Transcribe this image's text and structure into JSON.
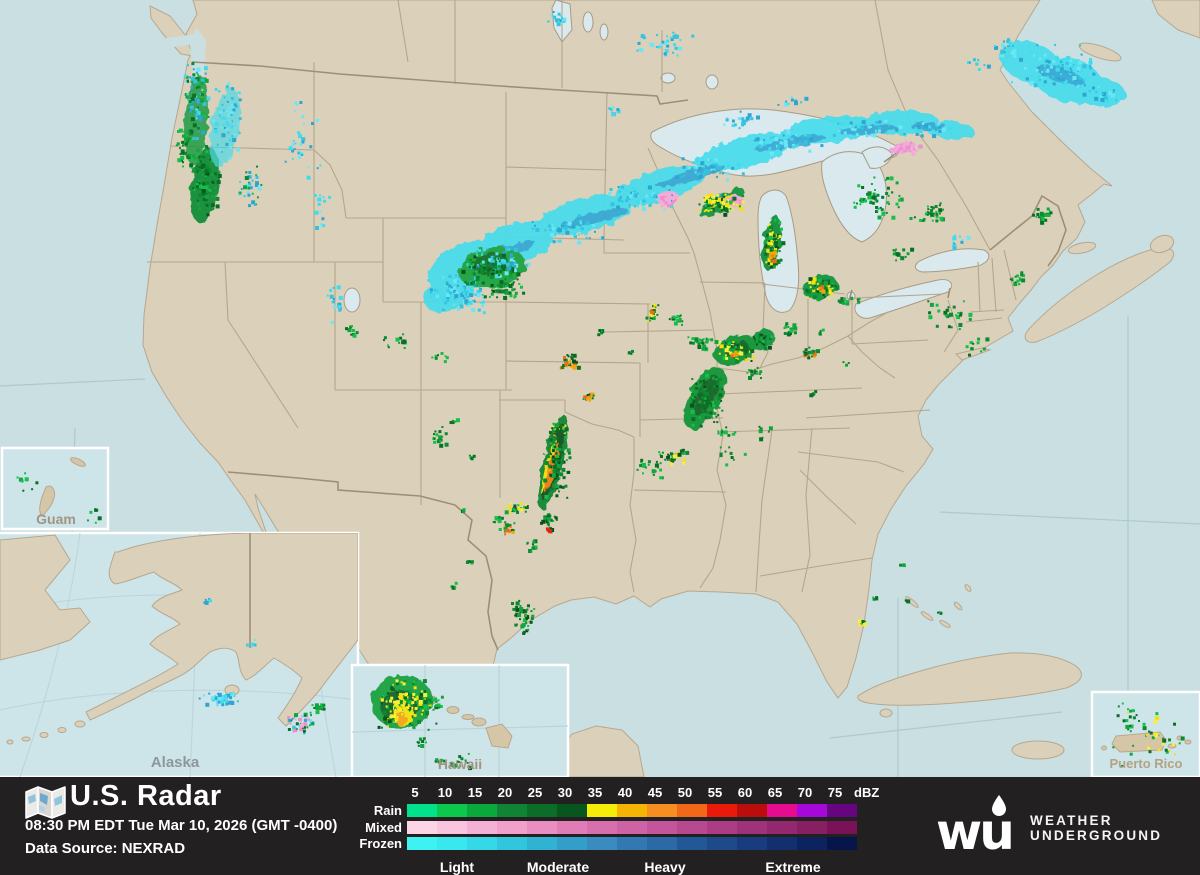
{
  "header": {
    "title": "U.S. Radar",
    "timestamp": "08:30 PM EDT Tue Mar 10, 2026 (GMT -0400)",
    "data_source": "Data Source: NEXRAD"
  },
  "legend": {
    "dbz_values": [
      "5",
      "10",
      "15",
      "20",
      "25",
      "30",
      "35",
      "40",
      "45",
      "50",
      "55",
      "60",
      "65",
      "70",
      "75"
    ],
    "dbz_unit": "dBZ",
    "rows": [
      {
        "label": "Rain",
        "colors": [
          "#00e28b",
          "#0cc84c",
          "#0aa93c",
          "#108434",
          "#0b6d28",
          "#07561d",
          "#f6ec09",
          "#f5b306",
          "#f68e21",
          "#f1681a",
          "#ea1a0b",
          "#ba0d0c",
          "#e60c90",
          "#a708da",
          "#670480"
        ]
      },
      {
        "label": "Mixed",
        "colors": [
          "#fbd5e6",
          "#f9c4de",
          "#f5b1d5",
          "#f0a0cb",
          "#e88ec0",
          "#e07db6",
          "#d76fad",
          "#cd62a4",
          "#c4559b",
          "#b84990",
          "#ac3d85",
          "#a03279",
          "#93286e",
          "#872063",
          "#7a1257"
        ]
      },
      {
        "label": "Frozen",
        "colors": [
          "#3ef2f2",
          "#39e7ee",
          "#35d8e7",
          "#32c6dd",
          "#30b2d3",
          "#329ec9",
          "#3a8cc0",
          "#3279b3",
          "#2c6aa6",
          "#235898",
          "#1e4a8a",
          "#183c7d",
          "#132f6e",
          "#0d2360",
          "#06164a"
        ]
      }
    ],
    "intensity_labels": [
      "Light",
      "Moderate",
      "Heavy",
      "Extreme"
    ]
  },
  "insets": [
    {
      "label": "Guam"
    },
    {
      "label": "Alaska"
    },
    {
      "label": "Hawaii"
    },
    {
      "label": "Puerto Rico"
    }
  ],
  "logo": {
    "mark": "wu",
    "line1": "WEATHER",
    "line2": "UNDERGROUND"
  },
  "colors": {
    "bar_bg": "#232021",
    "land": "#dbd1ba",
    "water": "#c9dfe2",
    "lake": "#d9e9ed",
    "inset_water": "#cde4e8",
    "state_border": "#b3a38c",
    "country_border": "#9f8e77"
  }
}
